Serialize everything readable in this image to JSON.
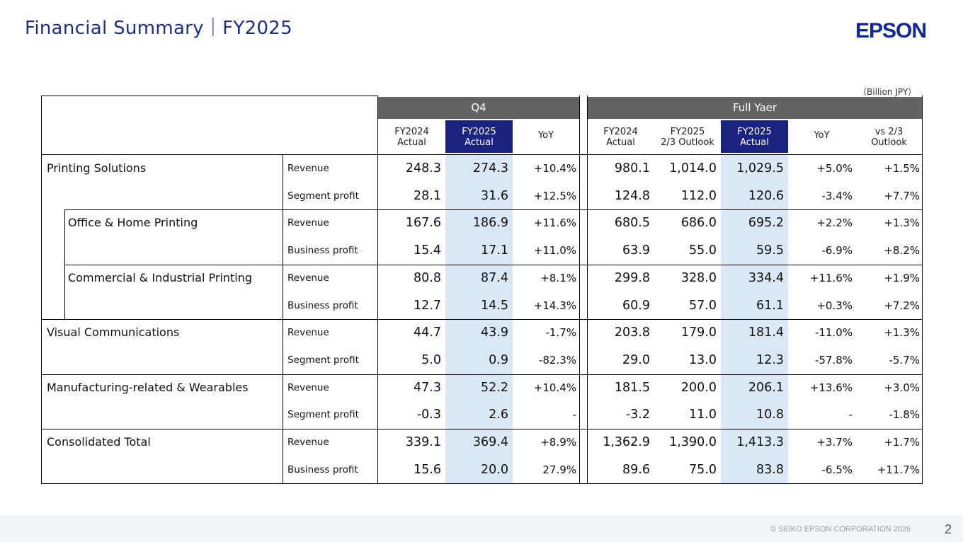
{
  "header": {
    "title": "Financial Summary｜FY2025",
    "logo_text": "EPSON",
    "unit": "（Billion JPY）"
  },
  "table": {
    "group_q4": "Q4",
    "group_full": "Full Yaer",
    "columns": [
      "FY2024 Actual",
      "FY2025 Actual",
      "YoY",
      "FY2024 Actual",
      "FY2025 2/3 Outlook",
      "FY2025 Actual",
      "YoY",
      "vs 2/3 Outlook"
    ],
    "column_lines": [
      [
        "FY2024",
        "Actual"
      ],
      [
        "FY2025",
        "Actual"
      ],
      [
        "YoY"
      ],
      [
        "FY2024",
        "Actual"
      ],
      [
        "FY2025",
        "2/3 Outlook"
      ],
      [
        "FY2025",
        "Actual"
      ],
      [
        "YoY"
      ],
      [
        "vs 2/3",
        "Outlook"
      ]
    ],
    "rows": [
      {
        "segment": "Printing Solutions",
        "metric": "Revenue",
        "values": [
          "248.3",
          "274.3",
          "+10.4%",
          "980.1",
          "1,014.0",
          "1,029.5",
          "+5.0%",
          "+1.5%"
        ]
      },
      {
        "segment": "",
        "metric": "Segment profit",
        "values": [
          "28.1",
          "31.6",
          "+12.5%",
          "124.8",
          "112.0",
          "120.6",
          "-3.4%",
          "+7.7%"
        ]
      },
      {
        "segment": "Office & Home Printing",
        "metric": "Revenue",
        "values": [
          "167.6",
          "186.9",
          "+11.6%",
          "680.5",
          "686.0",
          "695.2",
          "+2.2%",
          "+1.3%"
        ]
      },
      {
        "segment": "",
        "metric": "Business profit",
        "values": [
          "15.4",
          "17.1",
          "+11.0%",
          "63.9",
          "55.0",
          "59.5",
          "-6.9%",
          "+8.2%"
        ]
      },
      {
        "segment": "Commercial & Industrial Printing",
        "metric": "Revenue",
        "values": [
          "80.8",
          "87.4",
          "+8.1%",
          "299.8",
          "328.0",
          "334.4",
          "+11.6%",
          "+1.9%"
        ]
      },
      {
        "segment": "",
        "metric": "Business profit",
        "values": [
          "12.7",
          "14.5",
          "+14.3%",
          "60.9",
          "57.0",
          "61.1",
          "+0.3%",
          "+7.2%"
        ]
      },
      {
        "segment": "Visual Communications",
        "metric": "Revenue",
        "values": [
          "44.7",
          "43.9",
          "-1.7%",
          "203.8",
          "179.0",
          "181.4",
          "-11.0%",
          "+1.3%"
        ]
      },
      {
        "segment": "",
        "metric": "Segment profit",
        "values": [
          "5.0",
          "0.9",
          "-82.3%",
          "29.0",
          "13.0",
          "12.3",
          "-57.8%",
          "-5.7%"
        ]
      },
      {
        "segment": "Manufacturing-related & Wearables",
        "metric": "Revenue",
        "values": [
          "47.3",
          "52.2",
          "+10.4%",
          "181.5",
          "200.0",
          "206.1",
          "+13.6%",
          "+3.0%"
        ]
      },
      {
        "segment": "",
        "metric": "Segment profit",
        "values": [
          "-0.3",
          "2.6",
          "-",
          "-3.2",
          "11.0",
          "10.8",
          "-",
          "-1.8%"
        ]
      },
      {
        "segment": "Consolidated Total",
        "metric": "Revenue",
        "values": [
          "339.1",
          "369.4",
          "+8.9%",
          "1,362.9",
          "1,390.0",
          "1,413.3",
          "+3.7%",
          "+1.7%"
        ]
      },
      {
        "segment": "",
        "metric": "Business profit",
        "values": [
          "15.6",
          "20.0",
          "27.9%",
          "89.6",
          "75.0",
          "83.8",
          "-6.5%",
          "+11.7%"
        ]
      }
    ]
  },
  "footer": {
    "copyright": "© SEIKO EPSON CORPORATION 2026",
    "page": "2"
  },
  "colors": {
    "title": "#1d2f8c",
    "logo": "#12289a",
    "group_header": "#636363",
    "highlight_header": "#1b2380",
    "highlight_column": "#dae8f6"
  }
}
